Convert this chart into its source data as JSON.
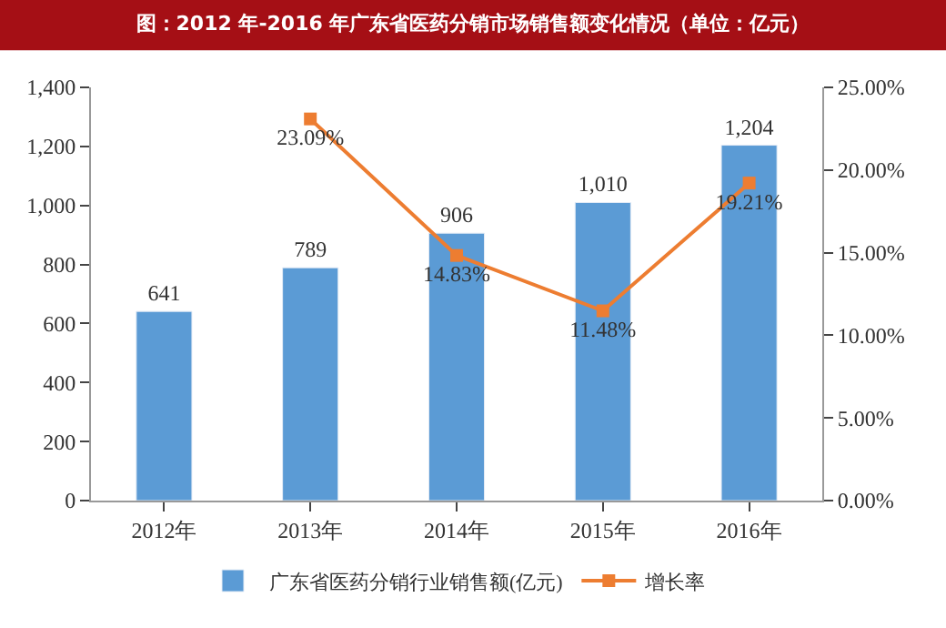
{
  "chart_data": {
    "type": "bar",
    "title": "图：2012 年-2016 年广东省医药分销市场销售额变化情况（单位：亿元）",
    "categories": [
      "2012年",
      "2013年",
      "2014年",
      "2015年",
      "2016年"
    ],
    "series": [
      {
        "name": "广东省医药分销行业销售额(亿元)",
        "color": "#5b9bd5",
        "values": [
          641,
          789,
          906,
          1010,
          1204
        ],
        "value_labels": [
          "641",
          "789",
          "906",
          "1,010",
          "1,204"
        ]
      },
      {
        "name": "增长率",
        "type": "line",
        "axis": "y2",
        "color": "#ed7d31",
        "marker": "square",
        "values": [
          null,
          23.09,
          14.83,
          11.48,
          19.21
        ],
        "value_labels": [
          null,
          "23.09%",
          "14.83%",
          "11.48%",
          "19.21%"
        ]
      }
    ],
    "ylim": [
      0,
      1400
    ],
    "yticks": [
      0,
      {
        "value": 200,
        "label": "200"
      },
      {
        "value": 400,
        "label": "400"
      },
      {
        "value": 600,
        "label": "600"
      },
      {
        "value": 800,
        "label": "800"
      },
      {
        "value": 1000,
        "label": "1,000"
      },
      {
        "value": 1200,
        "label": "1,200"
      },
      {
        "value": 1400,
        "label": "1,400"
      }
    ],
    "y2lim": [
      0,
      25
    ],
    "y2ticks": [
      {
        "value": 0,
        "label": "0.00%"
      },
      {
        "value": 5,
        "label": "5.00%"
      },
      {
        "value": 10,
        "label": "10.00%"
      },
      {
        "value": 15,
        "label": "15.00%"
      },
      {
        "value": 20,
        "label": "20.00%"
      },
      {
        "value": 25,
        "label": "25.00%"
      }
    ],
    "legend": "bottom"
  }
}
